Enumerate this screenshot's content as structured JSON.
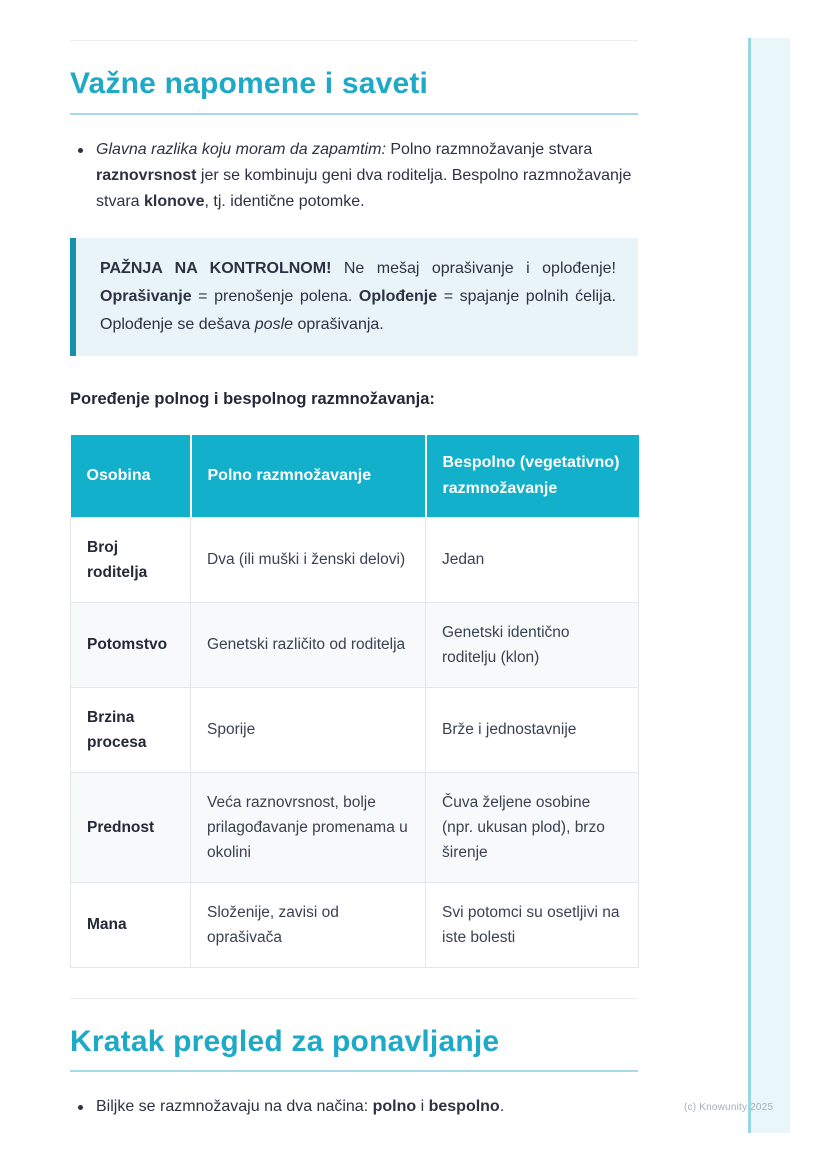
{
  "page": {
    "watermark": "(c) Knowunity 2025"
  },
  "colors": {
    "accent_teal": "#1ea9c6",
    "table_header_bg": "#12b0ca",
    "callout_border": "#1791ab",
    "callout_bg": "#e9f4f8",
    "rail_fill": "#eaf7fa",
    "rail_line": "#97d7e3"
  },
  "notes_section": {
    "title": "Važne napomene i saveti",
    "intro_bullet": {
      "lead_italic": "Glavna razlika koju moram da zapamtim:",
      "t1": " Polno razmnožavanje stvara ",
      "b1": "raznovrsnost",
      "t2": " jer se kombinuju geni dva roditelja. Bespolno razmnožavanje stvara ",
      "b2": "klonove",
      "t3": ", tj. identične potomke."
    },
    "callout": {
      "b1": "PAŽNJA NA KONTROLNOM!",
      "t1": " Ne mešaj oprašivanje i oplođenje! ",
      "b2": "Oprašivanje",
      "t2": " = prenošenje polena. ",
      "b3": "Oplođenje",
      "t3": " = spajanje polnih ćelija. Oplođenje se dešava ",
      "i1": "posle",
      "t4": " oprašivanja."
    },
    "table_caption": "Poređenje polnog i bespolnog razmnožavanja:",
    "table": {
      "headers": [
        "Osobina",
        "Polno razmnožavanje",
        "Bespolno (vegetativno) razmnožavanje"
      ],
      "rows": [
        {
          "feature": "Broj roditelja",
          "polno": "Dva (ili muški i ženski delovi)",
          "bespolno": "Jedan"
        },
        {
          "feature": "Potomstvo",
          "polno": "Genetski različito od roditelja",
          "bespolno": "Genetski identično roditelju (klon)"
        },
        {
          "feature": "Brzina procesa",
          "polno": "Sporije",
          "bespolno": "Brže i jednostavnije"
        },
        {
          "feature": "Prednost",
          "polno": "Veća raznovrsnost, bolje prilagođavanje promenama u okolini",
          "bespolno": "Čuva željene osobine (npr. ukusan plod), brzo širenje"
        },
        {
          "feature": "Mana",
          "polno": "Složenije, zavisi od oprašivača",
          "bespolno": "Svi potomci su osetljivi na iste bolesti"
        }
      ]
    }
  },
  "review_section": {
    "title": "Kratak pregled za ponavljanje",
    "bullet": {
      "t1": "Biljke se razmnožavaju na dva načina: ",
      "b1": "polno",
      "t2": " i ",
      "b2": "bespolno",
      "t3": "."
    }
  }
}
